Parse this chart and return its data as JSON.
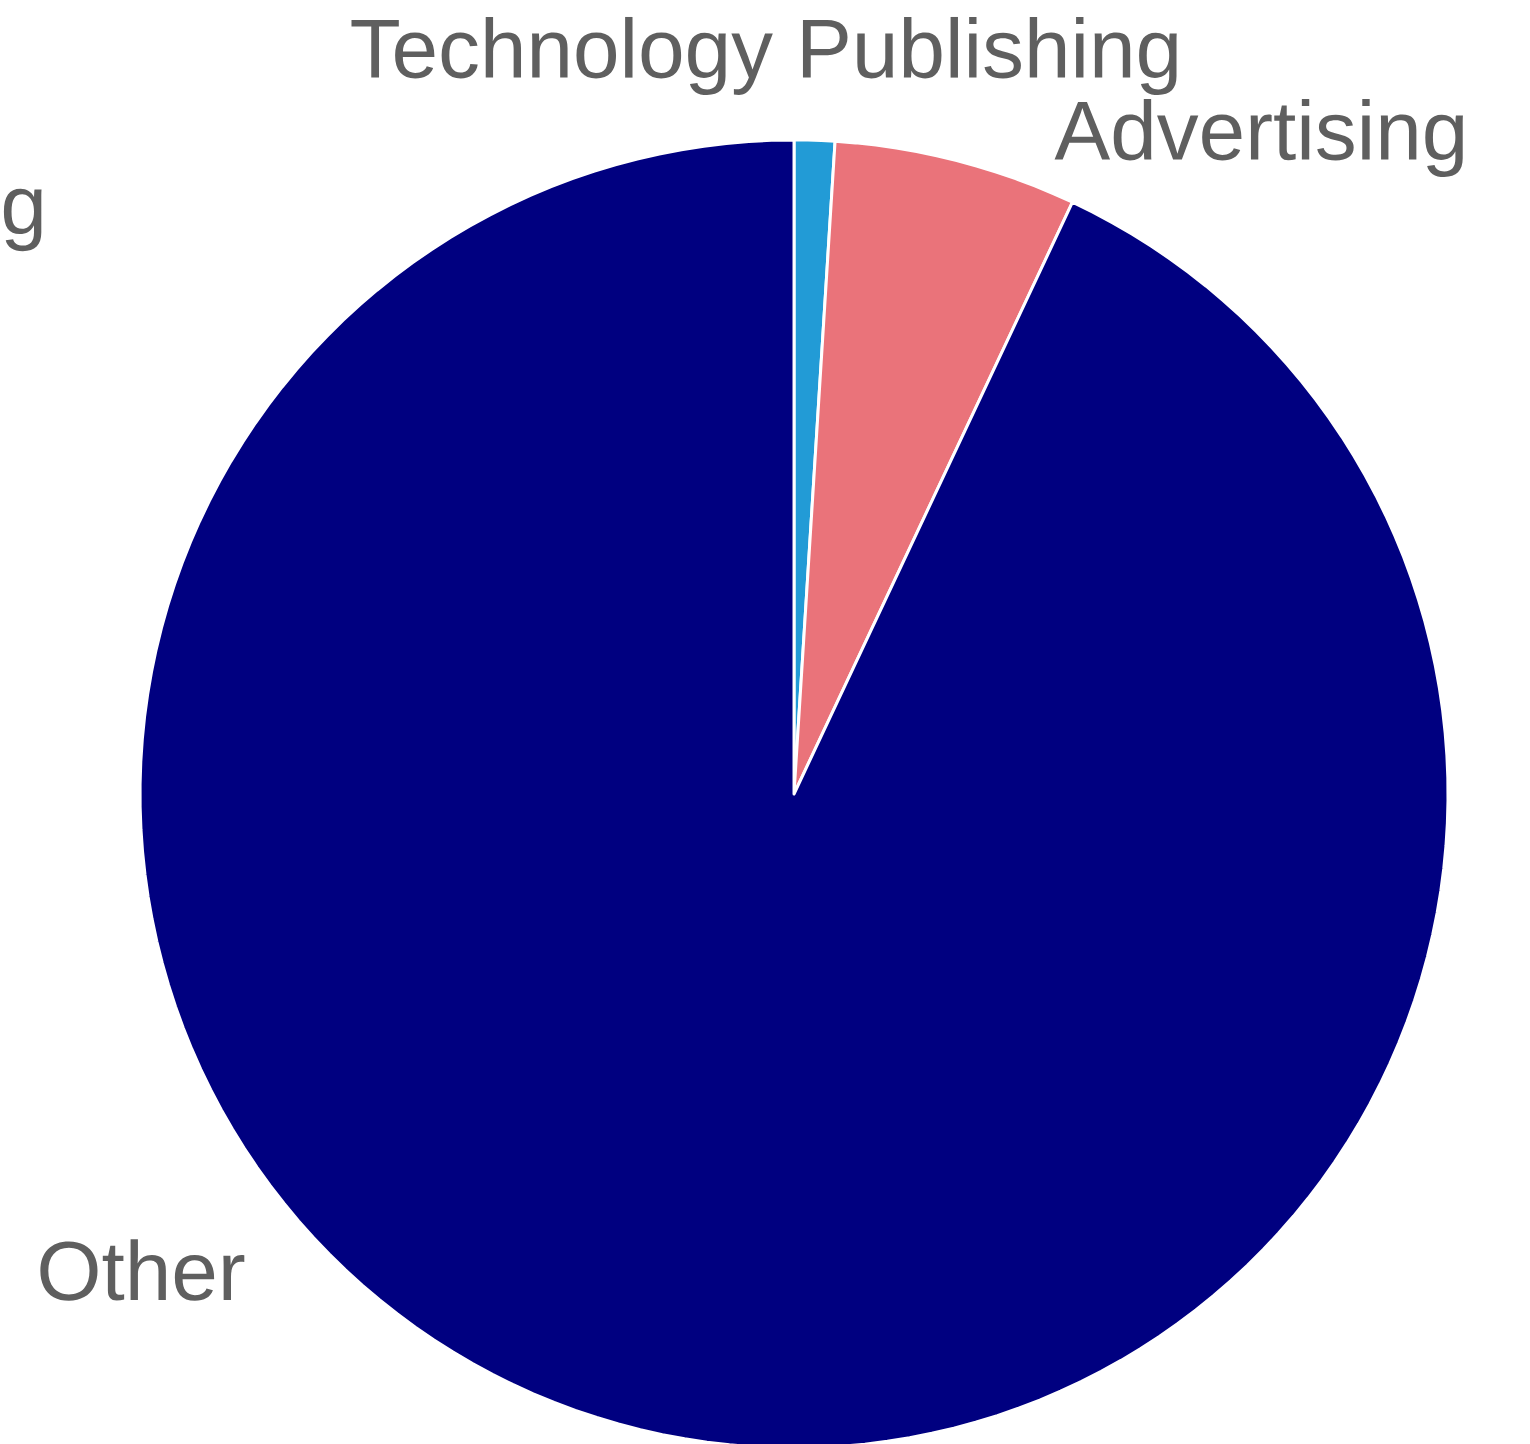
{
  "chart_data": {
    "type": "pie",
    "categories": [
      "Technology Publishing",
      "Advertising",
      "Other"
    ],
    "values": [
      1,
      6,
      93
    ],
    "colors": [
      "#229bd6",
      "#ea737a",
      "#000080"
    ],
    "annotations": [
      "g"
    ]
  }
}
